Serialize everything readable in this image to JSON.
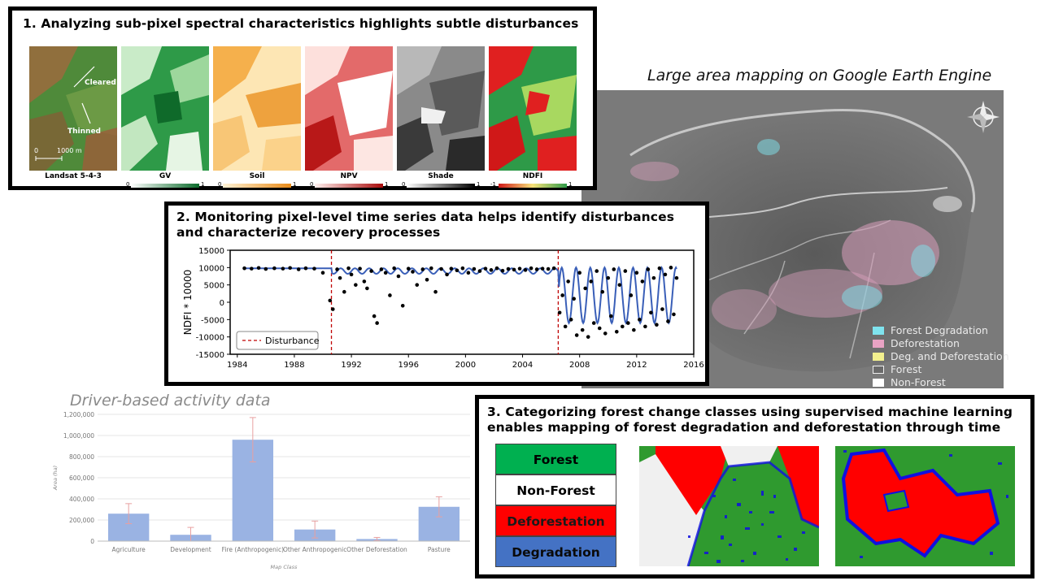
{
  "panel1": {
    "title": "1. Analyzing sub-pixel spectral characteristics highlights subtle disturbances",
    "annotations": {
      "cleared": "Cleared",
      "thinned": "Thinned",
      "scale_left": "0",
      "scale_right": "1000 m"
    },
    "thumbs": [
      {
        "label": "Landsat 5-4-3",
        "min": "",
        "max": ""
      },
      {
        "label": "GV",
        "min": "0",
        "max": "1"
      },
      {
        "label": "Soil",
        "min": "0",
        "max": "1"
      },
      {
        "label": "NPV",
        "min": "0",
        "max": "1"
      },
      {
        "label": "Shade",
        "min": "0",
        "max": "1"
      },
      {
        "label": "NDFI",
        "min": "-1",
        "max": "1"
      }
    ]
  },
  "gee": {
    "title": "Large area mapping on Google Earth Engine",
    "legend": [
      {
        "label": "Forest Degradation",
        "color": "#7fe3ee"
      },
      {
        "label": "Deforestation",
        "color": "#e9a3c4"
      },
      {
        "label": "Deg. and Deforestation",
        "color": "#f3f08e"
      },
      {
        "label": "Forest",
        "color": "#6a6a6a"
      },
      {
        "label": "Non-Forest",
        "color": "#ffffff"
      }
    ]
  },
  "panel2": {
    "title_line1": "2. Monitoring pixel-level time series data helps identify disturbances",
    "title_line2": "and characterize recovery processes",
    "chart_data": {
      "type": "scatter",
      "ylabel": "NDFI * 10000",
      "xlabel": "",
      "xlim": [
        1983.5,
        2016
      ],
      "ylim": [
        -15000,
        15000
      ],
      "x_ticks": [
        1984,
        1988,
        1992,
        1996,
        2000,
        2004,
        2008,
        2012,
        2016
      ],
      "y_ticks": [
        15000,
        10000,
        5000,
        0,
        -5000,
        -10000,
        -15000
      ],
      "disturbances": [
        1990.6,
        2006.5
      ],
      "legend": "Disturbance",
      "series": [
        {
          "x": [
            1984.5,
            1985.0,
            1985.5,
            1986.0,
            1986.6,
            1987.2,
            1987.7,
            1988.3,
            1988.8,
            1989.4,
            1990.0,
            1990.5,
            1990.7,
            1991.0,
            1991.2,
            1991.5,
            1991.8,
            1992.0,
            1992.3,
            1992.6,
            1992.9,
            1993.1,
            1993.4,
            1993.6,
            1993.8,
            1994.1,
            1994.4,
            1994.7,
            1995.0,
            1995.3,
            1995.6,
            1996.0,
            1996.3,
            1996.6,
            1997.0,
            1997.3,
            1997.6,
            1997.9,
            1998.3,
            1998.7,
            1999.0,
            1999.4,
            1999.8,
            2000.2,
            2000.6,
            2001.0,
            2001.4,
            2001.8,
            2002.2,
            2002.6,
            2003.0,
            2003.4,
            2003.8,
            2004.2,
            2004.6,
            2005.0,
            2005.4,
            2005.8,
            2006.2,
            2006.6,
            2006.8,
            2007.0,
            2007.2,
            2007.4,
            2007.6,
            2007.8,
            2008.0,
            2008.2,
            2008.4,
            2008.6,
            2008.8,
            2009.0,
            2009.2,
            2009.4,
            2009.6,
            2009.8,
            2010.0,
            2010.2,
            2010.4,
            2010.6,
            2010.8,
            2011.0,
            2011.2,
            2011.4,
            2011.6,
            2011.8,
            2012.0,
            2012.2,
            2012.4,
            2012.6,
            2012.8,
            2013.0,
            2013.2,
            2013.4,
            2013.6,
            2013.8,
            2014.0,
            2014.2,
            2014.4,
            2014.6,
            2014.8
          ],
          "y": [
            9800,
            9700,
            9900,
            9600,
            9800,
            9700,
            9900,
            9500,
            9800,
            9700,
            8500,
            500,
            -2000,
            9500,
            7000,
            3000,
            9800,
            8000,
            5000,
            9700,
            6000,
            4000,
            9000,
            -4000,
            -6000,
            9500,
            8500,
            2000,
            9800,
            7500,
            -1000,
            9700,
            8800,
            5000,
            9500,
            6500,
            9800,
            3000,
            9600,
            8000,
            9700,
            9200,
            9800,
            8500,
            9600,
            9000,
            9700,
            9300,
            9800,
            9100,
            9600,
            9400,
            9700,
            9300,
            9800,
            9500,
            9700,
            9600,
            9800,
            -3000,
            2000,
            -7000,
            6000,
            -5000,
            1000,
            -9500,
            8500,
            -8000,
            4000,
            -10000,
            6000,
            -6000,
            9000,
            -7500,
            3000,
            -9000,
            7000,
            -4000,
            9500,
            -8500,
            5000,
            -7000,
            9000,
            -6000,
            2000,
            -8000,
            8500,
            -5000,
            6000,
            -7000,
            9500,
            -3000,
            7000,
            -6500,
            9800,
            -2000,
            8000,
            -5500,
            10000,
            -3500,
            7000
          ]
        },
        {
          "name": "",
          "type": "line"
        }
      ]
    }
  },
  "driver": {
    "title": "Driver-based activity data",
    "chart_data": {
      "type": "bar",
      "categories": [
        "Agriculture",
        "Development",
        "Fire (Anthropogenic)",
        "Other Anthropogenic",
        "Other Deforestation",
        "Pasture"
      ],
      "values": [
        260000,
        60000,
        960000,
        110000,
        20000,
        325000
      ],
      "errors": [
        95000,
        70000,
        210000,
        80000,
        15000,
        95000
      ],
      "xlabel": "Map Class",
      "ylabel": "Area (ha)",
      "ylim": [
        0,
        1200000
      ],
      "y_ticks": [
        0,
        200000,
        400000,
        600000,
        800000,
        1000000,
        1200000
      ],
      "y_tick_labels": [
        "0",
        "200,000",
        "400,000",
        "600,000",
        "800,000",
        "1,000,000",
        "1,200,000"
      ]
    }
  },
  "panel3": {
    "title_line1": "3. Categorizing forest change classes using supervised machine learning",
    "title_line2": "enables mapping of forest degradation and deforestation through time",
    "classes": [
      {
        "label": "Forest",
        "color": "#00b050",
        "text_color": "#000000"
      },
      {
        "label": "Non-Forest",
        "color": "#ffffff",
        "text_color": "#000000"
      },
      {
        "label": "Deforestation",
        "color": "#ff0000",
        "text_color": "#1a1a1a"
      },
      {
        "label": "Degradation",
        "color": "#4472c4",
        "text_color": "#0a0a0a"
      }
    ]
  }
}
